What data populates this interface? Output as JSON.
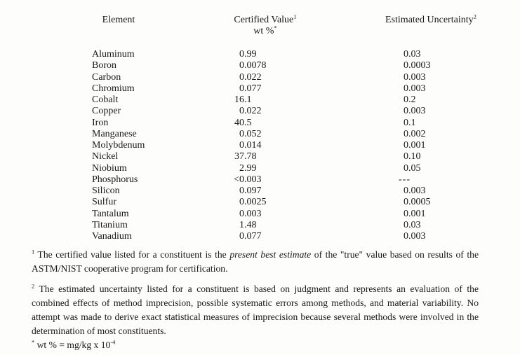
{
  "document": {
    "background": "#fdfdfc",
    "text_color": "#1b1814"
  },
  "table": {
    "headers": {
      "element": "Element",
      "certified_value": "Certified Value",
      "certified_value_footnote_marker": "1",
      "unit": "wt %",
      "unit_footnote_marker": "*",
      "estimated_uncertainty": "Estimated Uncertainty",
      "estimated_uncertainty_footnote_marker": "2"
    },
    "rows": [
      {
        "element": "Aluminum",
        "certified_value": "0.99",
        "estimated_uncertainty": "0.03"
      },
      {
        "element": "Boron",
        "certified_value": "0.0078",
        "estimated_uncertainty": "0.0003"
      },
      {
        "element": "Carbon",
        "certified_value": "0.022",
        "estimated_uncertainty": "0.003"
      },
      {
        "element": "Chromium",
        "certified_value": "0.077",
        "estimated_uncertainty": "0.003"
      },
      {
        "element": "Cobalt",
        "certified_value": "16.1",
        "estimated_uncertainty": "0.2"
      },
      {
        "element": "Copper",
        "certified_value": "0.022",
        "estimated_uncertainty": "0.003"
      },
      {
        "element": "Iron",
        "certified_value": "40.5",
        "estimated_uncertainty": "0.1"
      },
      {
        "element": "Manganese",
        "certified_value": "0.052",
        "estimated_uncertainty": "0.002"
      },
      {
        "element": "Molybdenum",
        "certified_value": "0.014",
        "estimated_uncertainty": "0.001"
      },
      {
        "element": "Nickel",
        "certified_value": "37.78",
        "estimated_uncertainty": "0.10"
      },
      {
        "element": "Niobium",
        "certified_value": "2.99",
        "estimated_uncertainty": "0.05"
      },
      {
        "element": "Phosphorus",
        "certified_value": "<0.003",
        "estimated_uncertainty": "---"
      },
      {
        "element": "Silicon",
        "certified_value": "0.097",
        "estimated_uncertainty": "0.003"
      },
      {
        "element": "Sulfur",
        "certified_value": "0.0025",
        "estimated_uncertainty": "0.0005"
      },
      {
        "element": "Tantalum",
        "certified_value": "0.003",
        "estimated_uncertainty": "0.001"
      },
      {
        "element": "Titanium",
        "certified_value": "1.48",
        "estimated_uncertainty": "0.03"
      },
      {
        "element": "Vanadium",
        "certified_value": "0.077",
        "estimated_uncertainty": "0.003"
      }
    ]
  },
  "footnotes": {
    "footnote1": {
      "marker": "1",
      "line1_pre": " The certified value listed for a constituent is the ",
      "line1_italic": "present best estimate",
      "line1_post": " of the \"true\" value based on results of the",
      "line2": "ASTM/NIST cooperative program for certification."
    },
    "footnote2": {
      "marker": "2",
      "line1": " The estimated uncertainty listed for a constituent is based on judgment and represents an evaluation of the",
      "line2": "combined effects of method imprecision, possible systematic errors among methods, and material variability.  No",
      "line3": "attempt was made to derive exact statistical measures of imprecision because several methods were involved in the",
      "line4": "determination of most constituents."
    },
    "unit_note": {
      "marker": "*",
      "text": " wt % = mg/kg x 10",
      "exponent": "-4"
    }
  }
}
